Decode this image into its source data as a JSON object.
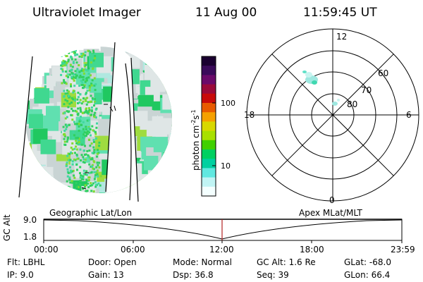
{
  "header": {
    "instrument": "Ultraviolet Imager",
    "date": "11 Aug 00",
    "time": "11:59:45 UT"
  },
  "colorbar": {
    "unit_label": "photon cm",
    "unit_exp1": "-2",
    "unit_s": "s",
    "unit_exp2": "-1",
    "tick_100": "100",
    "tick_10": "10",
    "colors": [
      "#1a0030",
      "#3a0a5a",
      "#6a0a6a",
      "#9a0a3a",
      "#c80a0a",
      "#e85a00",
      "#f5a000",
      "#d8d800",
      "#a8e000",
      "#40d000",
      "#00d060",
      "#00d0a0",
      "#60e8e0",
      "#c0f4f4",
      "#f4ffff"
    ]
  },
  "polar": {
    "mlt_top": "12",
    "mlt_bottom": "0",
    "mlt_left": "18",
    "mlt_right": "6",
    "lat_60": "60",
    "lat_70": "70",
    "lat_80": "80"
  },
  "geo_label": "Geographic Lat/Lon",
  "apex_label": "Apex MLat/MLT",
  "timeline": {
    "ylabel": "GC Alt",
    "ytick_top": "9.0",
    "ytick_bottom": "1.8",
    "xticks": [
      "00:00",
      "06:00",
      "12:00",
      "18:00",
      "23:59"
    ],
    "marker_color": "#b22222"
  },
  "status": {
    "flt": "Flt: LBHL",
    "ip": "IP:  9.0",
    "door": "Door: Open",
    "gain": "Gain: 13",
    "mode": "Mode:  Normal",
    "dsp": "Dsp:    36.8",
    "gcalt": "GC Alt: 1.6 Re",
    "seq": "Seq: 39",
    "glat": "GLat:  -68.0",
    "glon": "GLon:   66.4"
  }
}
